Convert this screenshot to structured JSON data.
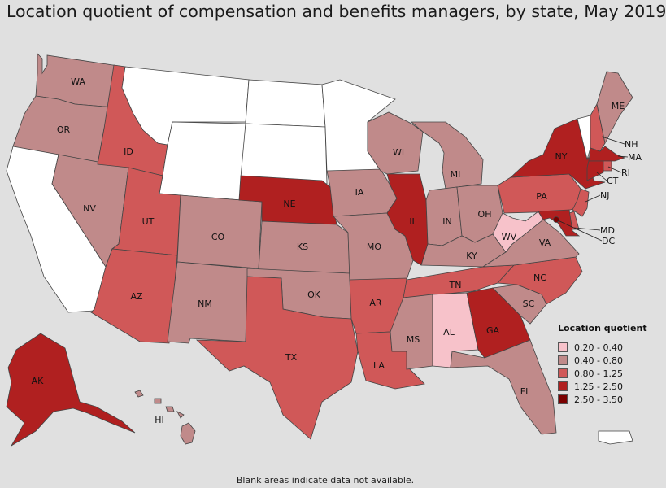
{
  "title": "Location quotient of compensation and benefits managers, by state, May 2019",
  "legend": {
    "title": "Location quotient",
    "classes": [
      {
        "label": "0.20 - 0.40",
        "color": "#f7c2ca"
      },
      {
        "label": "0.40 - 0.80",
        "color": "#c08a8a"
      },
      {
        "label": "0.80 - 1.25",
        "color": "#d05858"
      },
      {
        "label": "1.25 - 2.50",
        "color": "#b02020"
      },
      {
        "label": "2.50 - 3.50",
        "color": "#7a0000"
      }
    ]
  },
  "no_data_color": "#ffffff",
  "footnote": "Blank areas indicate data not available.",
  "states": {
    "WA": {
      "label": "WA",
      "class": 1
    },
    "OR": {
      "label": "OR",
      "class": 1
    },
    "CA": {
      "label": "",
      "class": null
    },
    "NV": {
      "label": "NV",
      "class": 1
    },
    "ID": {
      "label": "ID",
      "class": 2
    },
    "MT": {
      "label": "",
      "class": null
    },
    "WY": {
      "label": "",
      "class": null
    },
    "UT": {
      "label": "UT",
      "class": 2
    },
    "AZ": {
      "label": "AZ",
      "class": 2
    },
    "CO": {
      "label": "CO",
      "class": 1
    },
    "NM": {
      "label": "NM",
      "class": 1
    },
    "ND": {
      "label": "",
      "class": null
    },
    "SD": {
      "label": "",
      "class": null
    },
    "NE": {
      "label": "NE",
      "class": 3
    },
    "KS": {
      "label": "KS",
      "class": 1
    },
    "OK": {
      "label": "OK",
      "class": 1
    },
    "TX": {
      "label": "TX",
      "class": 2
    },
    "MN": {
      "label": "",
      "class": null
    },
    "IA": {
      "label": "IA",
      "class": 1
    },
    "MO": {
      "label": "MO",
      "class": 1
    },
    "AR": {
      "label": "AR",
      "class": 2
    },
    "LA": {
      "label": "LA",
      "class": 2
    },
    "WI": {
      "label": "WI",
      "class": 1
    },
    "IL": {
      "label": "IL",
      "class": 3
    },
    "MI": {
      "label": "MI",
      "class": 1
    },
    "IN": {
      "label": "IN",
      "class": 1
    },
    "OH": {
      "label": "OH",
      "class": 1
    },
    "KY": {
      "label": "KY",
      "class": 1
    },
    "TN": {
      "label": "TN",
      "class": 2
    },
    "MS": {
      "label": "MS",
      "class": 1
    },
    "AL": {
      "label": "AL",
      "class": 0
    },
    "GA": {
      "label": "GA",
      "class": 3
    },
    "FL": {
      "label": "FL",
      "class": 1
    },
    "SC": {
      "label": "SC",
      "class": 1
    },
    "NC": {
      "label": "NC",
      "class": 2
    },
    "VA": {
      "label": "VA",
      "class": 1
    },
    "WV": {
      "label": "WV",
      "class": 0
    },
    "PA": {
      "label": "PA",
      "class": 2
    },
    "NY": {
      "label": "NY",
      "class": 3
    },
    "VT": {
      "label": "",
      "class": null
    },
    "NH": {
      "label": "NH",
      "class": 2
    },
    "ME": {
      "label": "ME",
      "class": 1
    },
    "MA": {
      "label": "MA",
      "class": 3
    },
    "RI": {
      "label": "RI",
      "class": 2
    },
    "CT": {
      "label": "CT",
      "class": 3
    },
    "NJ": {
      "label": "NJ",
      "class": 2
    },
    "DE": {
      "label": "",
      "class": 2
    },
    "MD": {
      "label": "MD",
      "class": 3
    },
    "DC": {
      "label": "DC",
      "class": 4
    },
    "AK": {
      "label": "AK",
      "class": 3
    },
    "HI": {
      "label": "HI",
      "class": 1
    },
    "PR": {
      "label": "",
      "class": null
    }
  }
}
